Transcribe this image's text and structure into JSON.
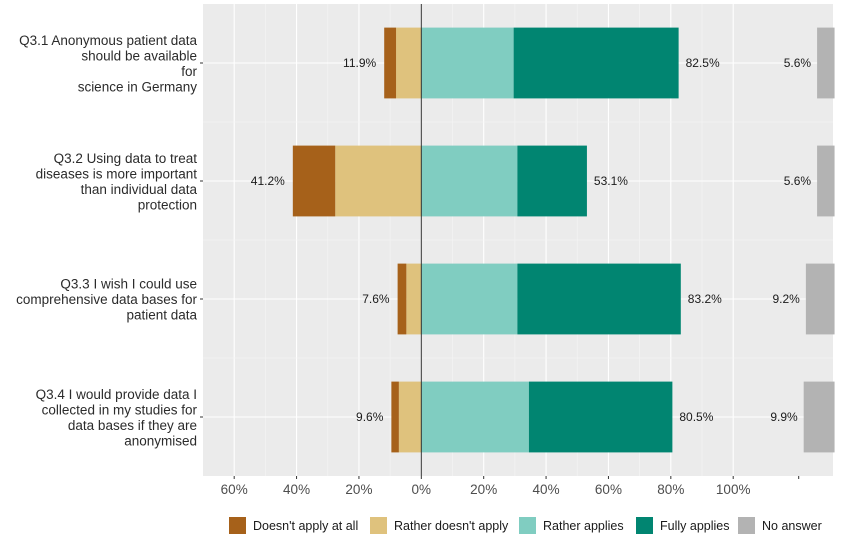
{
  "chart_data": {
    "type": "bar",
    "orientation": "horizontal-diverging-stacked",
    "categories": [
      "Q3.1 Anonymous patient data should be available for science in Germany",
      "Q3.2 Using data to treat diseases is more important than individual data protection",
      "Q3.3 I wish I could use comprehensive data bases for patient data",
      "Q3.4 I would provide data I collected in my studies for data bases if they are anonymised"
    ],
    "category_lines": [
      [
        "Q3.1 Anonymous patient data",
        "should be available",
        "for",
        "science in Germany"
      ],
      [
        "Q3.2 Using data to treat",
        "diseases is more important",
        "than individual data",
        "protection"
      ],
      [
        "Q3.3 I wish I could use",
        "comprehensive data bases for",
        "patient data"
      ],
      [
        "Q3.4 I would provide data I",
        "collected in my studies for",
        "data bases if they are",
        "anonymised"
      ]
    ],
    "series": [
      {
        "name": "Doesn't apply at all",
        "values": [
          -3.8,
          -13.6,
          -2.8,
          -2.4
        ],
        "color": "#a6611a"
      },
      {
        "name": "Rather doesn't apply",
        "values": [
          -8.1,
          -27.6,
          -4.8,
          -7.2
        ],
        "color": "#dfc27d"
      },
      {
        "name": "Rather applies",
        "values": [
          29.6,
          30.8,
          30.8,
          34.5
        ],
        "color": "#80cdc1"
      },
      {
        "name": "Fully applies",
        "values": [
          52.9,
          22.3,
          52.4,
          46.0
        ],
        "color": "#018571"
      },
      {
        "name": "No answer",
        "values": [
          5.6,
          5.6,
          9.2,
          9.9
        ],
        "color": "#b3b3b3"
      }
    ],
    "negative_totals": [
      "11.9%",
      "41.2%",
      "7.6%",
      "9.6%"
    ],
    "positive_totals": [
      "82.5%",
      "53.1%",
      "83.2%",
      "80.5%"
    ],
    "no_answer_labels": [
      "5.6%",
      "5.6%",
      "9.2%",
      "9.9%"
    ],
    "x_ticks": [
      {
        "value": -60,
        "label": "60%"
      },
      {
        "value": -40,
        "label": "40%"
      },
      {
        "value": -20,
        "label": "20%"
      },
      {
        "value": 0,
        "label": "0%"
      },
      {
        "value": 20,
        "label": "20%"
      },
      {
        "value": 40,
        "label": "40%"
      },
      {
        "value": 60,
        "label": "60%"
      },
      {
        "value": 80,
        "label": "80%"
      },
      {
        "value": 100,
        "label": "100%"
      }
    ],
    "xlim": [
      -70,
      132
    ],
    "no_answer_axis_start": 121,
    "grid": true,
    "legend_position": "bottom",
    "title": "",
    "xlabel": "",
    "ylabel": ""
  }
}
